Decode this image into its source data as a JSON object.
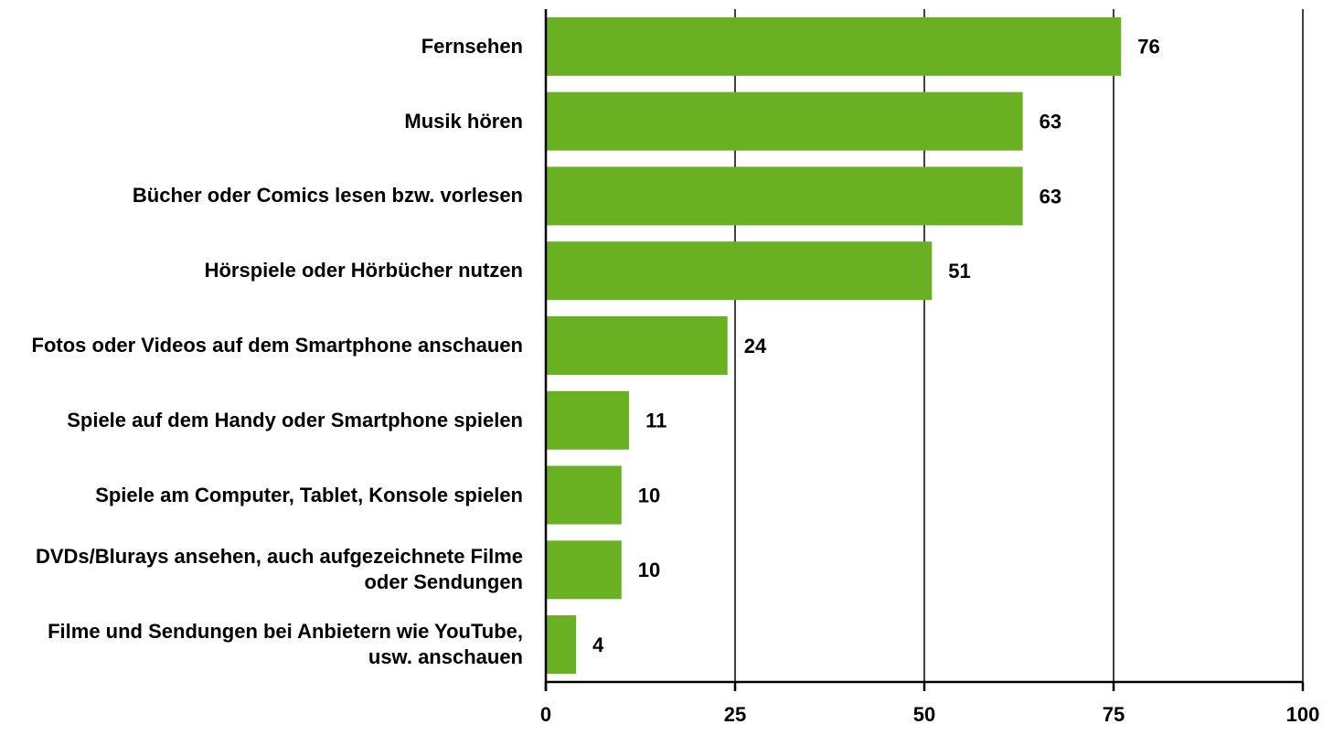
{
  "chart_data": {
    "type": "bar",
    "orientation": "horizontal",
    "categories": [
      "Fernsehen",
      "Musik hören",
      "Bücher oder Comics lesen bzw. vorlesen",
      "Hörspiele oder Hörbücher nutzen",
      "Fotos oder Videos auf dem Smartphone anschauen",
      "Spiele auf dem Handy oder Smartphone spielen",
      "Spiele am Computer, Tablet, Konsole spielen",
      "DVDs/Blurays ansehen, auch aufgezeichnete Filme oder Sendungen",
      "Filme und Sendungen bei Anbietern wie YouTube, usw. anschauen"
    ],
    "values": [
      76,
      63,
      63,
      51,
      24,
      11,
      10,
      10,
      4
    ],
    "color": "#6ab023",
    "xlim": [
      0,
      100
    ],
    "xticks": [
      0,
      25,
      50,
      75,
      100
    ],
    "grid": true
  }
}
